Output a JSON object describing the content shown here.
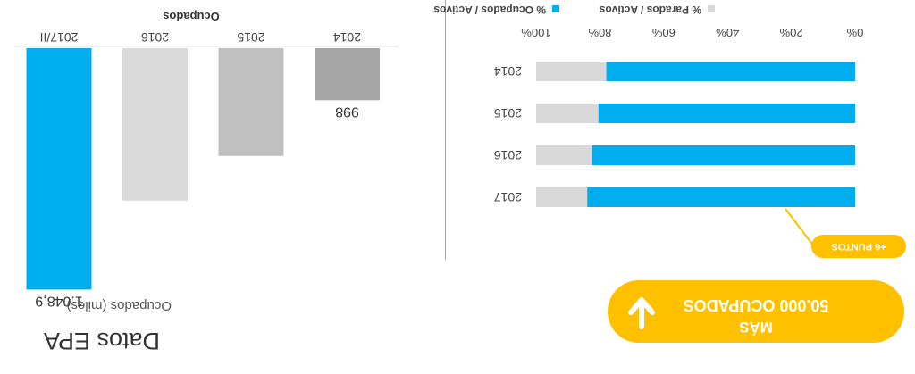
{
  "title": "Datos EPA",
  "subtitle": "Ocupados (miles)",
  "colors": {
    "bar_grey_dark": "#a6a6a6",
    "bar_grey_mid": "#c0c0c0",
    "bar_grey_light": "#dadada",
    "accent_blue": "#00aeef",
    "parados_grey": "#d9d9d9",
    "highlight_yellow": "#ffc000"
  },
  "chart_data": [
    {
      "type": "bar",
      "title": "Ocupados",
      "categories": [
        "2014",
        "2015",
        "2016",
        "2017/II"
      ],
      "values": [
        998,
        1013,
        1025,
        1048.9
      ],
      "data_labels": [
        "998",
        "",
        "",
        "1.048,9"
      ],
      "bar_colors": [
        "#a6a6a6",
        "#c0c0c0",
        "#dadada",
        "#00aeef"
      ],
      "ylim": [
        984,
        1050
      ]
    },
    {
      "type": "bar",
      "orientation": "horizontal",
      "stacked": true,
      "categories": [
        "2014",
        "2015",
        "2016",
        "2017"
      ],
      "series": [
        {
          "name": "% Ocupados / Activos",
          "values": [
            78,
            80.5,
            82.5,
            84
          ],
          "color": "#00aeef"
        },
        {
          "name": "% Parados / Activos",
          "values": [
            22,
            19.5,
            17.5,
            16
          ],
          "color": "#d9d9d9"
        }
      ],
      "xticks": [
        "0%",
        "20%",
        "40%",
        "60%",
        "80%",
        "100%"
      ],
      "xlim": [
        0,
        100
      ],
      "legend": "top"
    }
  ],
  "annotation": "+6 PUNTOS",
  "cta": {
    "line1": "MÁS",
    "line2": "50.000 OCUPADOS",
    "icon": "arrow-down-icon"
  }
}
